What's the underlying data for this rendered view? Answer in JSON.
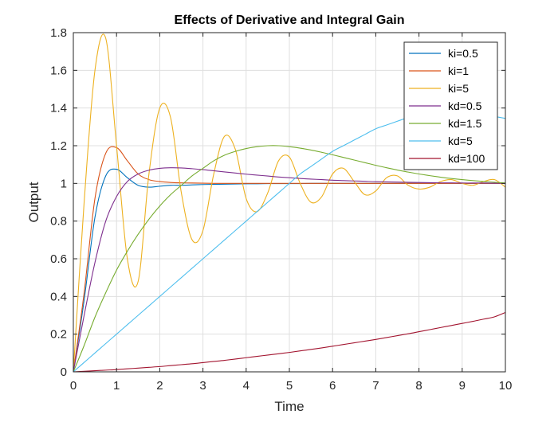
{
  "chart_data": {
    "type": "line",
    "title": "Effects of Derivative and Integral Gain",
    "xlabel": "Time",
    "ylabel": "Output",
    "xlim": [
      0,
      10
    ],
    "ylim": [
      0,
      1.8
    ],
    "xticks": [
      "0",
      "1",
      "2",
      "3",
      "4",
      "5",
      "6",
      "7",
      "8",
      "9",
      "10"
    ],
    "yticks": [
      "0",
      "0.2",
      "0.4",
      "0.6",
      "0.8",
      "1",
      "1.2",
      "1.4",
      "1.6",
      "1.8"
    ],
    "grid": true,
    "legend_position": "top-right",
    "x": [
      0,
      0.25,
      0.5,
      0.75,
      1,
      1.25,
      1.5,
      1.75,
      2,
      2.25,
      2.5,
      2.75,
      3,
      3.25,
      3.5,
      3.75,
      4,
      4.25,
      4.5,
      4.75,
      5,
      5.25,
      5.5,
      5.75,
      6,
      6.25,
      6.5,
      6.75,
      7,
      7.25,
      7.5,
      7.75,
      8,
      8.25,
      8.5,
      8.75,
      9,
      9.25,
      9.5,
      9.75,
      10
    ],
    "series": [
      {
        "name": "ki=0.5",
        "color": "#0072BD",
        "values": [
          0,
          0.38,
          0.82,
          1.04,
          1.075,
          1.03,
          0.99,
          0.98,
          0.985,
          0.99,
          0.99,
          0.992,
          0.994,
          0.995,
          0.996,
          0.997,
          0.998,
          0.998,
          0.999,
          0.999,
          0.999,
          0.999,
          1,
          1,
          1,
          1,
          1,
          1,
          1,
          1,
          1,
          1,
          1,
          1,
          1,
          1,
          1,
          1,
          1,
          1,
          1
        ]
      },
      {
        "name": "ki=1",
        "color": "#D95319",
        "values": [
          0,
          0.42,
          0.92,
          1.16,
          1.19,
          1.12,
          1.05,
          1.02,
          1.01,
          1.005,
          1.003,
          1.002,
          1.001,
          1,
          1,
          1,
          1,
          1,
          1,
          1,
          1,
          1,
          1,
          1,
          1,
          1,
          1,
          1,
          1,
          1,
          1,
          1,
          1,
          1,
          1,
          1,
          1,
          1,
          1,
          1,
          1
        ]
      },
      {
        "name": "ki=5",
        "color": "#EDB120",
        "values": [
          0,
          0.9,
          1.6,
          1.77,
          1.2,
          0.6,
          0.48,
          1.05,
          1.4,
          1.35,
          0.95,
          0.7,
          0.75,
          1.05,
          1.25,
          1.18,
          0.92,
          0.85,
          0.95,
          1.12,
          1.14,
          1.0,
          0.9,
          0.93,
          1.05,
          1.08,
          1.01,
          0.94,
          0.96,
          1.03,
          1.04,
          0.99,
          0.97,
          0.98,
          1.01,
          1.02,
          1.0,
          0.99,
          1.01,
          1.02,
          0.98
        ]
      },
      {
        "name": "kd=0.5",
        "color": "#7E2F8E",
        "values": [
          0,
          0.3,
          0.58,
          0.8,
          0.93,
          1.01,
          1.05,
          1.07,
          1.08,
          1.083,
          1.082,
          1.078,
          1.073,
          1.067,
          1.061,
          1.055,
          1.049,
          1.044,
          1.039,
          1.034,
          1.03,
          1.026,
          1.023,
          1.02,
          1.017,
          1.015,
          1.013,
          1.011,
          1.009,
          1.008,
          1.007,
          1.006,
          1.005,
          1.004,
          1.003,
          1.003,
          1.002,
          1.002,
          1.002,
          1.001,
          1.001
        ]
      },
      {
        "name": "kd=1.5",
        "color": "#77AC30",
        "values": [
          0,
          0.14,
          0.29,
          0.42,
          0.54,
          0.64,
          0.73,
          0.81,
          0.88,
          0.94,
          0.99,
          1.04,
          1.08,
          1.12,
          1.15,
          1.17,
          1.185,
          1.195,
          1.2,
          1.2,
          1.195,
          1.187,
          1.177,
          1.165,
          1.152,
          1.138,
          1.124,
          1.11,
          1.096,
          1.083,
          1.071,
          1.06,
          1.05,
          1.041,
          1.033,
          1.026,
          1.02,
          1.015,
          1.01,
          1.006,
          1.002
        ]
      },
      {
        "name": "kd=5",
        "color": "#4DBEEE",
        "values": [
          0,
          0.05,
          0.1,
          0.15,
          0.2,
          0.25,
          0.3,
          0.35,
          0.4,
          0.45,
          0.5,
          0.55,
          0.6,
          0.65,
          0.7,
          0.75,
          0.8,
          0.85,
          0.9,
          0.95,
          1.0,
          1.05,
          1.09,
          1.13,
          1.17,
          1.2,
          1.23,
          1.26,
          1.29,
          1.31,
          1.33,
          1.35,
          1.365,
          1.375,
          1.38,
          1.38,
          1.378,
          1.372,
          1.365,
          1.355,
          1.345
        ]
      },
      {
        "name": "kd=100",
        "color": "#A2142F",
        "values": [
          0,
          0.003,
          0.006,
          0.009,
          0.012,
          0.016,
          0.02,
          0.024,
          0.028,
          0.033,
          0.038,
          0.043,
          0.049,
          0.055,
          0.061,
          0.068,
          0.075,
          0.082,
          0.089,
          0.096,
          0.103,
          0.111,
          0.119,
          0.127,
          0.136,
          0.145,
          0.154,
          0.163,
          0.172,
          0.182,
          0.192,
          0.202,
          0.213,
          0.224,
          0.235,
          0.246,
          0.257,
          0.268,
          0.28,
          0.292,
          0.315
        ]
      }
    ]
  }
}
